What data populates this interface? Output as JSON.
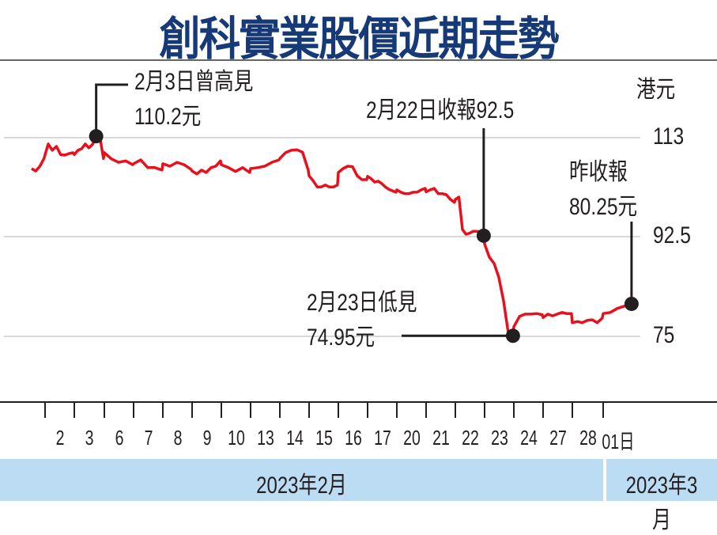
{
  "title": "創科實業股價近期走勢",
  "chart_data": {
    "type": "line",
    "title": "創科實業股價近期走勢",
    "unit_label": "港元",
    "yticks": [
      113,
      92.5,
      75
    ],
    "yticks_labels": [
      "113",
      "92.5",
      "75"
    ],
    "xlabels": [
      "2",
      "3",
      "6",
      "7",
      "8",
      "9",
      "10",
      "13",
      "14",
      "15",
      "16",
      "17",
      "20",
      "21",
      "22",
      "23",
      "24",
      "27",
      "28",
      "01日"
    ],
    "month_bands": [
      "2023年2月",
      "2023年3月"
    ],
    "grid": true,
    "line_color": "#e8101c",
    "series": [
      {
        "days": [
          {
            "d": "2",
            "v": [
              106.6,
              106.1,
              107.1,
              108.7,
              111.7,
              110.4,
              111.2,
              109.5,
              109.4,
              109.7,
              109.9
            ]
          },
          {
            "d": "3",
            "v": [
              109.5,
              110.4,
              110.7,
              111.7,
              110.9,
              111.6,
              113.3,
              113.2,
              108.7
            ]
          },
          {
            "d": "6",
            "v": [
              109.9,
              108.6,
              107.9,
              108.2,
              107.4
            ]
          },
          {
            "d": "7",
            "v": [
              107.6,
              108.4,
              106.8,
              106.8,
              106.3
            ]
          },
          {
            "d": "8",
            "v": [
              107.6,
              107.1,
              107.9,
              107.4,
              106.4
            ]
          },
          {
            "d": "9",
            "v": [
              106.1,
              105.5,
              106.3,
              105.8,
              106.8,
              107.1,
              108.2
            ]
          },
          {
            "d": "10",
            "v": [
              107.4,
              106.8,
              106.0,
              106.8,
              105.8
            ]
          },
          {
            "d": "13",
            "v": [
              106.6,
              106.8,
              107.1,
              107.9,
              108.4
            ]
          },
          {
            "d": "14",
            "v": [
              108.7,
              109.9,
              110.4,
              110.5,
              110.0,
              106.3
            ]
          },
          {
            "d": "15",
            "v": [
              105.1,
              104.1,
              102.8,
              102.8,
              103.2,
              102.8,
              102.8,
              103.2
            ]
          },
          {
            "d": "16",
            "v": [
              105.8,
              106.6,
              107.1,
              107.0,
              105.1,
              104.3,
              104.3
            ]
          },
          {
            "d": "17",
            "v": [
              105.0,
              104.5,
              103.8,
              104.0,
              103.5,
              102.8,
              102.3,
              102.0,
              101.7
            ]
          },
          {
            "d": "20",
            "v": [
              102.2,
              101.7,
              101.4,
              101.4,
              101.7,
              101.7,
              102.2,
              102.5
            ]
          },
          {
            "d": "21",
            "v": [
              101.8,
              102.2,
              102.5,
              101.4,
              101.4,
              101.2,
              100.2,
              99.6
            ]
          },
          {
            "d": "22",
            "v": [
              100.2,
              100.7,
              94.0,
              93.0,
              93.2,
              93.6,
              93.6,
              93.5,
              92.7
            ]
          },
          {
            "d": "23",
            "v": [
              91.2,
              88.9,
              87.8,
              85.4,
              81.3,
              75.7,
              75.1
            ]
          },
          {
            "d": "24",
            "v": [
              76.7,
              78.5,
              78.9,
              78.9,
              79.0,
              78.8
            ]
          },
          {
            "d": "27",
            "v": [
              78.3,
              78.9,
              78.6,
              78.9,
              79.2,
              79.0,
              79.0
            ]
          },
          {
            "d": "28",
            "v": [
              77.4,
              77.6,
              77.4,
              77.8,
              77.9,
              77.4,
              78.2
            ]
          },
          {
            "d": "01日",
            "v": [
              79.0,
              79.2,
              79.9,
              80.3,
              80.7
            ]
          }
        ]
      }
    ],
    "annotations": [
      {
        "day": "3",
        "point": 6,
        "line1": "2月3日曾高見",
        "line2": "110.2元"
      },
      {
        "day": "22",
        "point": 8,
        "line1": "2月22日收報92.5",
        "line2": ""
      },
      {
        "day": "23",
        "point": 6,
        "line1": "2月23日低見",
        "line2": "74.95元"
      },
      {
        "day": "01日",
        "point": 4,
        "line1": "昨收報",
        "line2": "80.25元"
      }
    ]
  }
}
